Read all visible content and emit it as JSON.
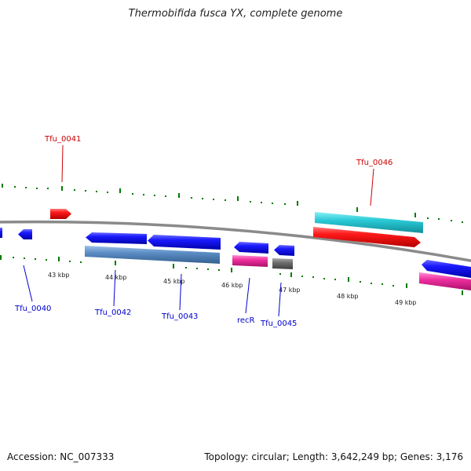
{
  "title": "Thermobifida fusca YX, complete genome",
  "footer": {
    "accession": "Accession: NC_007333",
    "summary": "Topology: circular; Length: 3,642,249 bp; Genes: 3,176"
  },
  "colors": {
    "backbone": "#808080",
    "tick": "#007a00",
    "label_forward": "#cc0000",
    "label_reverse": "#0000cc",
    "gene_blue": "#0000ee",
    "gene_red": "#ee0000",
    "cds_steel": "#5b8cc4",
    "cds_cyan": "#29c9d6",
    "cds_pink": "#ef2f9f",
    "cds_gray": "#6e6e6e"
  },
  "scale_labels": [
    "43 kbp",
    "44 kbp",
    "45 kbp",
    "46 kbp",
    "47 kbp",
    "48 kbp",
    "49 kbp"
  ],
  "gene_labels": [
    {
      "name": "Tfu_0041",
      "strand": "forward"
    },
    {
      "name": "Tfu_0046",
      "strand": "forward"
    },
    {
      "name": "Tfu_0040",
      "strand": "reverse"
    },
    {
      "name": "Tfu_0042",
      "strand": "reverse"
    },
    {
      "name": "Tfu_0043",
      "strand": "reverse"
    },
    {
      "name": "recR",
      "strand": "reverse"
    },
    {
      "name": "Tfu_0045",
      "strand": "reverse"
    }
  ]
}
